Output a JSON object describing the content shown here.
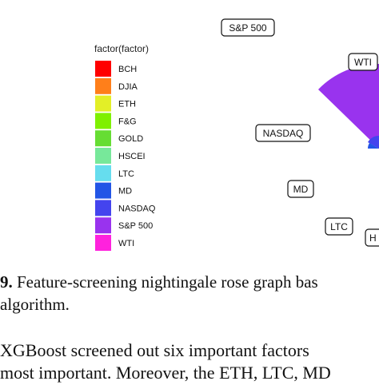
{
  "chart_data": {
    "type": "nightingale-rose",
    "legend_title": "factor(factor)",
    "legend_position": "left",
    "categories": [
      "BCH",
      "DJIA",
      "ETH",
      "F&G",
      "GOLD",
      "HSCEI",
      "LTC",
      "MD",
      "NASDAQ",
      "S&P 500",
      "WTI"
    ],
    "colors": {
      "BCH": "#ff0000",
      "DJIA": "#ff7f1a",
      "ETH": "#e3ef27",
      "F&G": "#7ff000",
      "GOLD": "#66dd33",
      "HSCEI": "#77e89a",
      "LTC": "#66ddee",
      "MD": "#2255e6",
      "NASDAQ": "#4444ee",
      "S&P 500": "#9933ee",
      "WTI": "#ff22dd"
    },
    "visible_labels": [
      "S&P 500",
      "WTI",
      "NASDAQ",
      "MD",
      "LTC",
      "H"
    ]
  },
  "caption": {
    "figure_number": "9.",
    "line1_text": " Feature-screening nightingale rose graph bas",
    "line2_text": "algorithm."
  },
  "body_text": {
    "line1": "XGBoost screened out six important factors",
    "line2": "most important. Moreover, the ETH, LTC, MD"
  }
}
